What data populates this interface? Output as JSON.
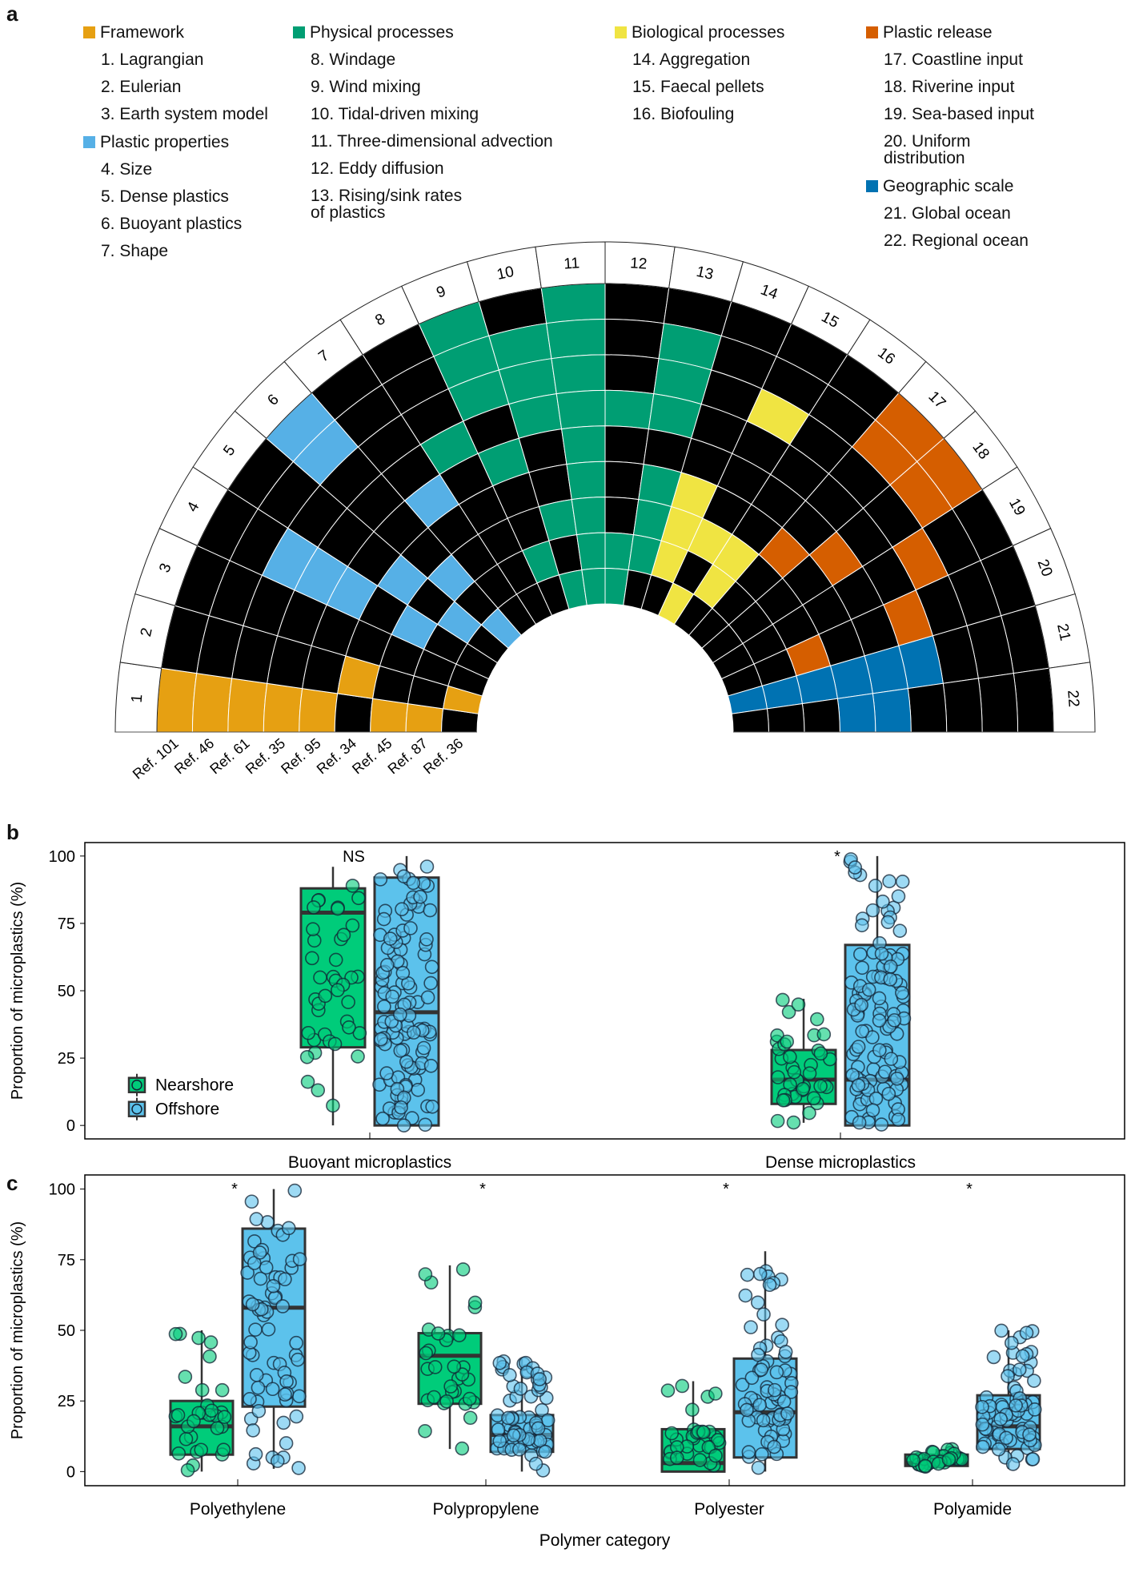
{
  "panels": {
    "a": "a",
    "b": "b",
    "c": "c"
  },
  "colors": {
    "framework": "#e6a012",
    "plastic_properties": "#56b0e6",
    "physical_processes": "#009e73",
    "biological_processes": "#f0e442",
    "plastic_release": "#d55e00",
    "geographic_scale": "#0072b2",
    "empty": "#000000",
    "nearshore": "#00cc7a",
    "offshore": "#5cc2ec"
  },
  "legend_groups": [
    {
      "key": "framework",
      "label": "Framework",
      "items": [
        "1. Lagrangian",
        "2. Eulerian",
        "3. Earth system model"
      ]
    },
    {
      "key": "plastic_properties",
      "label": "Plastic properties",
      "items": [
        "4. Size",
        "5. Dense plastics",
        "6. Buoyant plastics",
        "7. Shape"
      ]
    },
    {
      "key": "physical_processes",
      "label": "Physical processes",
      "items": [
        "8. Windage",
        "9. Wind mixing",
        "10. Tidal-driven mixing",
        "11. Three-dimensional advection",
        "12. Eddy diffusion",
        "13. Rising/sink rates of plastics"
      ]
    },
    {
      "key": "biological_processes",
      "label": "Biological processes",
      "items": [
        "14. Aggregation",
        "15. Faecal pellets",
        "16. Biofouling"
      ]
    },
    {
      "key": "plastic_release",
      "label": "Plastic release",
      "items": [
        "17. Coastline input",
        "18. Riverine input",
        "19. Sea-based input",
        "20. Uniform distribution"
      ]
    },
    {
      "key": "geographic_scale",
      "label": "Geographic scale",
      "items": [
        "21. Global ocean",
        "22. Regional ocean"
      ]
    }
  ],
  "chart_data": [
    {
      "type": "heatmap",
      "panel": "a",
      "layout": "polar-half-wheel",
      "sectors": [
        "1",
        "2",
        "3",
        "4",
        "5",
        "6",
        "7",
        "8",
        "9",
        "10",
        "11",
        "12",
        "13",
        "14",
        "15",
        "16",
        "17",
        "18",
        "19",
        "20",
        "21",
        "22"
      ],
      "sector_categories": [
        "framework",
        "framework",
        "framework",
        "plastic_properties",
        "plastic_properties",
        "plastic_properties",
        "plastic_properties",
        "physical_processes",
        "physical_processes",
        "physical_processes",
        "physical_processes",
        "physical_processes",
        "physical_processes",
        "biological_processes",
        "biological_processes",
        "biological_processes",
        "plastic_release",
        "plastic_release",
        "plastic_release",
        "plastic_release",
        "geographic_scale",
        "geographic_scale"
      ],
      "rings": [
        "Ref. 101",
        "Ref. 46",
        "Ref. 61",
        "Ref. 35",
        "Ref. 95",
        "Ref. 34",
        "Ref. 45",
        "Ref. 87",
        "Ref. 36"
      ],
      "matrix": [
        [
          1,
          0,
          0,
          0,
          0,
          1,
          0,
          0,
          1,
          0,
          1,
          0,
          0,
          0,
          0,
          0,
          1,
          1,
          0,
          0,
          0,
          0
        ],
        [
          1,
          0,
          0,
          0,
          0,
          1,
          0,
          0,
          1,
          1,
          1,
          0,
          1,
          0,
          0,
          0,
          1,
          1,
          0,
          0,
          0,
          0
        ],
        [
          1,
          0,
          0,
          1,
          0,
          0,
          0,
          0,
          1,
          1,
          1,
          0,
          1,
          0,
          1,
          0,
          0,
          0,
          1,
          0,
          0,
          0
        ],
        [
          1,
          0,
          0,
          1,
          0,
          0,
          0,
          1,
          0,
          1,
          1,
          1,
          1,
          0,
          0,
          0,
          0,
          0,
          0,
          1,
          1,
          0
        ],
        [
          1,
          0,
          0,
          1,
          0,
          0,
          1,
          0,
          1,
          0,
          1,
          0,
          0,
          0,
          0,
          0,
          0,
          1,
          0,
          0,
          1,
          1
        ],
        [
          0,
          1,
          0,
          0,
          1,
          0,
          0,
          0,
          0,
          0,
          1,
          0,
          1,
          1,
          0,
          0,
          1,
          0,
          0,
          0,
          1,
          1
        ],
        [
          1,
          0,
          0,
          1,
          0,
          1,
          0,
          0,
          0,
          1,
          1,
          0,
          1,
          1,
          1,
          1,
          0,
          0,
          0,
          1,
          1,
          0
        ],
        [
          1,
          0,
          0,
          0,
          1,
          0,
          0,
          0,
          1,
          0,
          1,
          1,
          1,
          1,
          0,
          1,
          0,
          0,
          0,
          0,
          1,
          0
        ],
        [
          0,
          1,
          0,
          0,
          0,
          1,
          0,
          0,
          0,
          1,
          1,
          1,
          0,
          0,
          1,
          0,
          0,
          0,
          0,
          0,
          1,
          0
        ]
      ]
    },
    {
      "type": "box",
      "panel": "b",
      "ylabel": "Proportion of microplastics (%)",
      "ylim": [
        -5,
        105
      ],
      "yticks": [
        0,
        25,
        50,
        75,
        100
      ],
      "categories": [
        "Buoyant microplastics",
        "Dense microplastics"
      ],
      "legend": [
        "Nearshore",
        "Offshore"
      ],
      "legend_position": "bottom-left",
      "significance": [
        "NS",
        "*"
      ],
      "series": [
        {
          "name": "Nearshore",
          "boxes": [
            {
              "q1": 29,
              "median": 79,
              "q3": 88,
              "whisker_low": 0,
              "whisker_high": 96
            },
            {
              "q1": 8,
              "median": 17,
              "q3": 28,
              "whisker_low": 1,
              "whisker_high": 47
            }
          ]
        },
        {
          "name": "Offshore",
          "boxes": [
            {
              "q1": 0,
              "median": 42,
              "q3": 92,
              "whisker_low": 0,
              "whisker_high": 100
            },
            {
              "q1": 0,
              "median": 17,
              "q3": 67,
              "whisker_low": 0,
              "whisker_high": 100
            }
          ]
        }
      ]
    },
    {
      "type": "box",
      "panel": "c",
      "ylabel": "Proportion of microplastics (%)",
      "xlabel": "Polymer category",
      "ylim": [
        -5,
        105
      ],
      "yticks": [
        0,
        25,
        50,
        75,
        100
      ],
      "categories": [
        "Polyethylene",
        "Polypropylene",
        "Polyester",
        "Polyamide"
      ],
      "significance": [
        "*",
        "*",
        "*",
        "*"
      ],
      "series": [
        {
          "name": "Nearshore",
          "boxes": [
            {
              "q1": 6,
              "median": 16,
              "q3": 25,
              "whisker_low": 0,
              "whisker_high": 50
            },
            {
              "q1": 24,
              "median": 41,
              "q3": 49,
              "whisker_low": 8,
              "whisker_high": 73
            },
            {
              "q1": 0,
              "median": 3,
              "q3": 15,
              "whisker_low": 0,
              "whisker_high": 32
            },
            {
              "q1": 2,
              "median": 3,
              "q3": 6,
              "whisker_low": 1,
              "whisker_high": 8
            }
          ]
        },
        {
          "name": "Offshore",
          "boxes": [
            {
              "q1": 23,
              "median": 58,
              "q3": 86,
              "whisker_low": 1,
              "whisker_high": 100
            },
            {
              "q1": 7,
              "median": 13,
              "q3": 20,
              "whisker_low": 0,
              "whisker_high": 40
            },
            {
              "q1": 5,
              "median": 21,
              "q3": 40,
              "whisker_low": 0,
              "whisker_high": 78
            },
            {
              "q1": 8,
              "median": 16,
              "q3": 27,
              "whisker_low": 1,
              "whisker_high": 50
            }
          ]
        }
      ]
    }
  ]
}
